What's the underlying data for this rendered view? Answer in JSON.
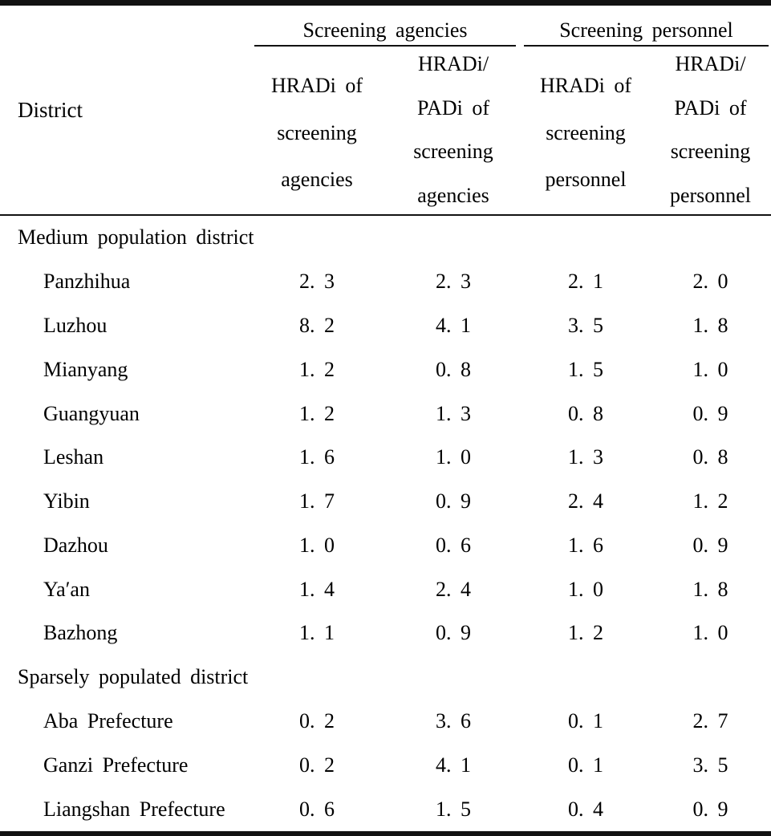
{
  "colors": {
    "text": "#000000",
    "background": "#ffffff",
    "rule": "#121212"
  },
  "table": {
    "district_header": "District",
    "groups": [
      {
        "label": "Screening agencies",
        "columns": [
          {
            "lines": [
              "HRADi of",
              "screening",
              "agencies"
            ]
          },
          {
            "lines": [
              "HRADi/",
              "PADi of",
              "screening",
              "agencies"
            ]
          }
        ]
      },
      {
        "label": "Screening personnel",
        "columns": [
          {
            "lines": [
              "HRADi of",
              "screening",
              "personnel"
            ]
          },
          {
            "lines": [
              "HRADi/",
              "PADi of",
              "screening",
              "personnel"
            ]
          }
        ]
      }
    ],
    "sections": [
      {
        "label": "Medium population district",
        "rows": [
          {
            "district": "Panzhihua",
            "values": [
              "2. 3",
              "2. 3",
              "2. 1",
              "2. 0"
            ]
          },
          {
            "district": "Luzhou",
            "values": [
              "8. 2",
              "4. 1",
              "3. 5",
              "1. 8"
            ]
          },
          {
            "district": "Mianyang",
            "values": [
              "1. 2",
              "0. 8",
              "1. 5",
              "1. 0"
            ]
          },
          {
            "district": "Guangyuan",
            "values": [
              "1. 2",
              "1. 3",
              "0. 8",
              "0. 9"
            ]
          },
          {
            "district": "Leshan",
            "values": [
              "1. 6",
              "1. 0",
              "1. 3",
              "0. 8"
            ]
          },
          {
            "district": "Yibin",
            "values": [
              "1. 7",
              "0. 9",
              "2. 4",
              "1. 2"
            ]
          },
          {
            "district": "Dazhou",
            "values": [
              "1. 0",
              "0. 6",
              "1. 6",
              "0. 9"
            ]
          },
          {
            "district": "Ya′an",
            "values": [
              "1. 4",
              "2. 4",
              "1. 0",
              "1. 8"
            ]
          },
          {
            "district": "Bazhong",
            "values": [
              "1. 1",
              "0. 9",
              "1. 2",
              "1. 0"
            ]
          }
        ]
      },
      {
        "label": "Sparsely populated district",
        "rows": [
          {
            "district": "Aba Prefecture",
            "values": [
              "0. 2",
              "3. 6",
              "0. 1",
              "2. 7"
            ]
          },
          {
            "district": "Ganzi Prefecture",
            "values": [
              "0. 2",
              "4. 1",
              "0. 1",
              "3. 5"
            ]
          },
          {
            "district": "Liangshan Prefecture",
            "values": [
              "0. 6",
              "1. 5",
              "0. 4",
              "0. 9"
            ]
          }
        ]
      }
    ]
  }
}
